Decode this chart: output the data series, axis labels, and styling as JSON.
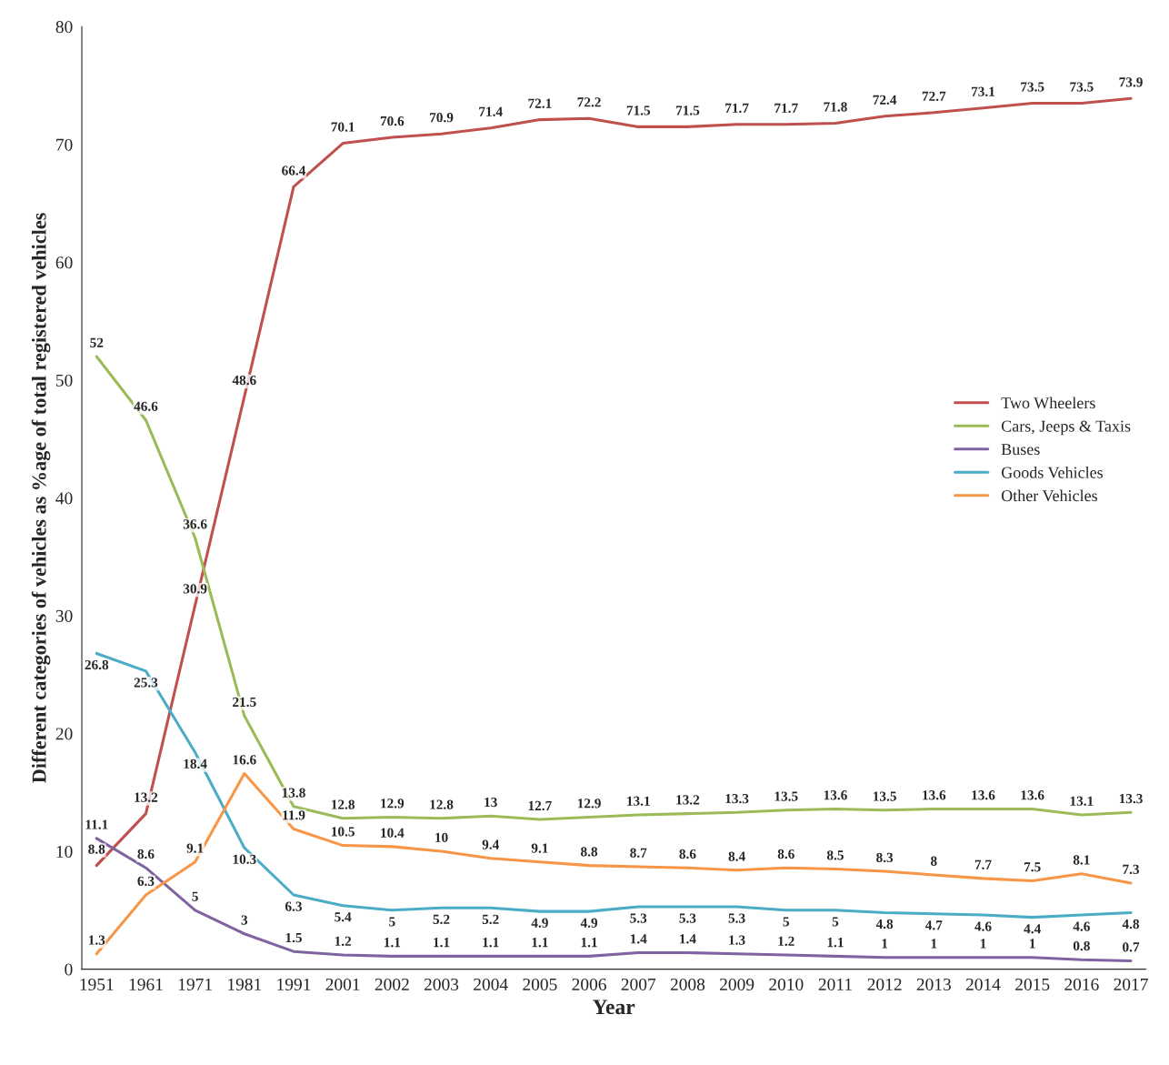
{
  "chart_data": {
    "type": "line",
    "xlabel": "Year",
    "ylabel": "Different categories of vehicles as %age of total registered vehicles",
    "categories": [
      "1951",
      "1961",
      "1971",
      "1981",
      "1991",
      "2001",
      "2002",
      "2003",
      "2004",
      "2005",
      "2006",
      "2007",
      "2008",
      "2009",
      "2010",
      "2011",
      "2012",
      "2013",
      "2014",
      "2015",
      "2016",
      "2017"
    ],
    "series": [
      {
        "name": "Two Wheelers",
        "color": "#c0504d",
        "values": [
          8.8,
          13.2,
          30.9,
          48.6,
          66.4,
          70.1,
          70.6,
          70.9,
          71.4,
          72.1,
          72.2,
          71.5,
          71.5,
          71.7,
          71.7,
          71.8,
          72.4,
          72.7,
          73.1,
          73.5,
          73.5,
          73.9
        ]
      },
      {
        "name": "Cars, Jeeps & Taxis",
        "color": "#9bbb59",
        "values": [
          52,
          46.6,
          36.6,
          21.5,
          13.8,
          12.8,
          12.9,
          12.8,
          13,
          12.7,
          12.9,
          13.1,
          13.2,
          13.3,
          13.5,
          13.6,
          13.5,
          13.6,
          13.6,
          13.6,
          13.1,
          13.3
        ]
      },
      {
        "name": "Buses",
        "color": "#8064a2",
        "values": [
          11.1,
          8.6,
          5,
          3,
          1.5,
          1.2,
          1.1,
          1.1,
          1.1,
          1.1,
          1.1,
          1.4,
          1.4,
          1.3,
          1.2,
          1.1,
          1,
          1,
          1,
          1,
          0.8,
          0.7
        ]
      },
      {
        "name": "Goods Vehicles",
        "color": "#4bacc6",
        "values": [
          26.8,
          25.3,
          18.4,
          10.3,
          6.3,
          5.4,
          5,
          5.2,
          5.2,
          4.9,
          4.9,
          5.3,
          5.3,
          5.3,
          5,
          5,
          4.8,
          4.7,
          4.6,
          4.4,
          4.6,
          4.8
        ]
      },
      {
        "name": "Other Vehicles",
        "color": "#f79646",
        "values": [
          1.3,
          6.3,
          9.1,
          16.6,
          11.9,
          10.5,
          10.4,
          10,
          9.4,
          9.1,
          8.8,
          8.7,
          8.6,
          8.4,
          8.6,
          8.5,
          8.3,
          8,
          7.7,
          7.5,
          8.1,
          7.3
        ]
      }
    ],
    "ylim": [
      0,
      80
    ],
    "yticks": [
      0,
      10,
      20,
      30,
      40,
      50,
      60,
      70,
      80
    ],
    "grid": false,
    "legend": "right",
    "data_labels": true,
    "marker": "none",
    "line_style": "solid"
  }
}
